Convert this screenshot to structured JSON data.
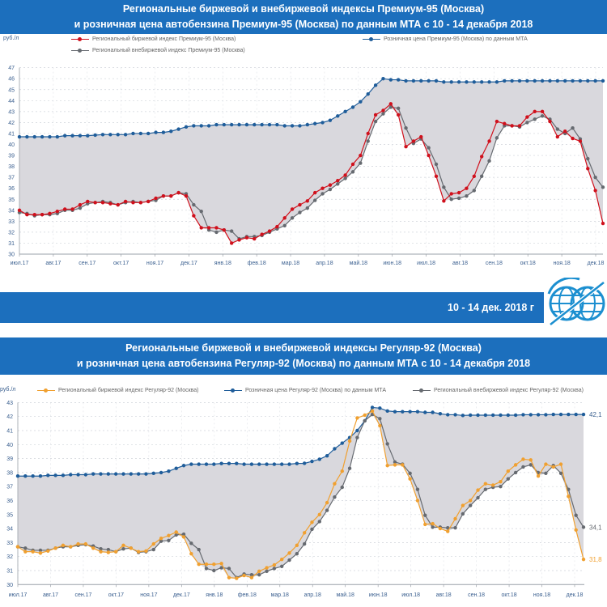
{
  "header1": {
    "line1": "Региональные биржевой и внебиржевой индексы Премиум-95 (Москва)",
    "line2": "и розничная цена автобензина Премиум-95 (Москва) по данным МТА с 10 - 14 декабря 2018"
  },
  "date_banner": "10 - 14 дек. 2018 г",
  "header2": {
    "line1": "Региональные биржевой и внебиржевой индексы Регуляр-92 (Москва)",
    "line2": "и розничная цена автобензина Регуляр-92 (Москва) по данным МТА с 10 - 14 декабря 2018"
  },
  "colors": {
    "banner": "#1c6fbd",
    "retail": "#1f5d9a",
    "exchange95": "#d0101c",
    "offexchange": "#666a70",
    "exchange92": "#f0a030",
    "gap_fill": "#d9d8dd"
  },
  "chart_data": [
    {
      "type": "line",
      "ylabel": "руб./л",
      "ylim": [
        30,
        47
      ],
      "yticks": [
        "30",
        "31",
        "32",
        "33",
        "34",
        "35",
        "36",
        "37",
        "38",
        "39",
        "40",
        "41",
        "42",
        "43",
        "44",
        "45",
        "46",
        "47"
      ],
      "xticks": [
        "июл.17",
        "авг.17",
        "сен.17",
        "окт.17",
        "ноя.17",
        "дек.17",
        "янв.18",
        "фев.18",
        "мар.18",
        "апр.18",
        "май.18",
        "июн.18",
        "июл.18",
        "авг.18",
        "сен.18",
        "окт.18",
        "ноя.18",
        "дек.18"
      ],
      "grid": true,
      "legend": "top",
      "series": [
        {
          "name": "Региональный биржевой индекс Премиум-95 (Москва)",
          "color": "#d0101c",
          "values": [
            34.0,
            33.6,
            33.6,
            33.6,
            33.7,
            33.9,
            34.1,
            34.1,
            34.5,
            34.8,
            34.7,
            34.7,
            34.6,
            34.5,
            34.8,
            34.7,
            34.7,
            34.8,
            35.1,
            35.3,
            35.3,
            35.6,
            35.3,
            33.5,
            32.4,
            32.4,
            32.4,
            32.2,
            31.0,
            31.3,
            31.5,
            31.4,
            31.8,
            32.1,
            32.5,
            33.3,
            34.1,
            34.5,
            34.85,
            35.6,
            36.0,
            36.3,
            36.7,
            37.2,
            38.2,
            39.0,
            41.0,
            42.7,
            43.1,
            43.7,
            42.7,
            39.8,
            40.3,
            40.7,
            39.0,
            37.1,
            34.85,
            35.5,
            35.6,
            36.0,
            37.1,
            38.9,
            40.3,
            42.1,
            41.9,
            41.7,
            41.7,
            42.5,
            43.0,
            43.0,
            42.1,
            40.7,
            41.2,
            40.55,
            40.3,
            37.8,
            35.8,
            32.8
          ]
        },
        {
          "name": "Региональный внебиржевой индекс Премиум-95 (Москва)",
          "color": "#666a70",
          "values": [
            33.8,
            33.7,
            33.5,
            33.6,
            33.6,
            33.7,
            34.0,
            34.0,
            34.2,
            34.6,
            34.7,
            34.8,
            34.7,
            34.5,
            34.7,
            34.8,
            34.7,
            34.8,
            34.9,
            35.3,
            35.3,
            35.6,
            35.5,
            34.5,
            33.9,
            32.2,
            32.0,
            32.2,
            32.1,
            31.4,
            31.6,
            31.6,
            31.7,
            32.0,
            32.3,
            32.6,
            33.3,
            33.8,
            34.2,
            34.9,
            35.5,
            35.9,
            36.4,
            36.9,
            37.5,
            38.3,
            40.3,
            42.1,
            42.8,
            43.4,
            43.3,
            41.5,
            40.1,
            40.5,
            39.7,
            38.2,
            36.1,
            35.0,
            35.1,
            35.3,
            35.8,
            37.1,
            38.5,
            40.6,
            41.7,
            41.7,
            41.6,
            42.0,
            42.3,
            42.6,
            42.3,
            41.4,
            41.0,
            41.5,
            40.5,
            38.7,
            37.0,
            36.1
          ]
        },
        {
          "name": "Розничная цена Премиум-95 (Москва) по данным МТА",
          "color": "#1f5d9a",
          "values": [
            40.7,
            40.7,
            40.7,
            40.7,
            40.7,
            40.7,
            40.8,
            40.8,
            40.8,
            40.8,
            40.85,
            40.9,
            40.9,
            40.9,
            40.9,
            41.0,
            41.0,
            41.0,
            41.1,
            41.1,
            41.2,
            41.4,
            41.6,
            41.7,
            41.7,
            41.7,
            41.8,
            41.8,
            41.8,
            41.8,
            41.8,
            41.8,
            41.8,
            41.8,
            41.8,
            41.7,
            41.7,
            41.7,
            41.8,
            41.9,
            42.0,
            42.2,
            42.6,
            43.0,
            43.4,
            43.9,
            44.6,
            45.4,
            46.0,
            45.9,
            45.9,
            45.8,
            45.8,
            45.8,
            45.8,
            45.8,
            45.7,
            45.7,
            45.7,
            45.7,
            45.7,
            45.7,
            45.7,
            45.7,
            45.8,
            45.8,
            45.8,
            45.8,
            45.8,
            45.8,
            45.8,
            45.8,
            45.8,
            45.8,
            45.8,
            45.8,
            45.8,
            45.8
          ]
        }
      ]
    },
    {
      "type": "line",
      "ylabel": "руб./л",
      "ylim": [
        30,
        43
      ],
      "yticks": [
        "30",
        "31",
        "32",
        "33",
        "34",
        "35",
        "36",
        "37",
        "38",
        "39",
        "40",
        "41",
        "42",
        "43"
      ],
      "xticks": [
        "июл.17",
        "авг.17",
        "сен.17",
        "окт.17",
        "ноя.17",
        "дек.17",
        "янв.18",
        "фев.18",
        "мар.18",
        "апр.18",
        "май.18",
        "июн.18",
        "июл.18",
        "авг.18",
        "сен.18",
        "окт.18",
        "ноя.18",
        "дек.18"
      ],
      "grid": true,
      "legend": "top",
      "end_labels": [
        "42,1",
        "34,1",
        "31,8"
      ],
      "series": [
        {
          "name": "Региональный биржевой индекс Регуляр-92 (Москва)",
          "color": "#f0a030",
          "values": [
            32.7,
            32.35,
            32.35,
            32.25,
            32.4,
            32.6,
            32.8,
            32.7,
            32.9,
            32.9,
            32.6,
            32.35,
            32.3,
            32.35,
            32.8,
            32.6,
            32.35,
            32.4,
            32.9,
            33.3,
            33.5,
            33.75,
            33.4,
            32.2,
            31.45,
            31.45,
            31.45,
            31.5,
            30.5,
            30.45,
            30.65,
            30.5,
            30.95,
            31.2,
            31.4,
            31.8,
            32.25,
            32.8,
            33.7,
            34.45,
            35.0,
            35.85,
            37.2,
            38.1,
            40.25,
            41.9,
            42.1,
            42.4,
            41.35,
            38.5,
            38.55,
            38.55,
            37.55,
            36.0,
            34.3,
            34.35,
            34.0,
            33.8,
            34.7,
            35.65,
            36.0,
            36.75,
            37.2,
            37.1,
            37.35,
            38.1,
            38.55,
            38.95,
            38.9,
            37.75,
            38.6,
            38.4,
            38.6,
            36.3,
            33.9,
            31.8
          ]
        },
        {
          "name": "Розничная цена Регуляр-92 (Москва) по данным МТА",
          "color": "#1f5d9a",
          "values": [
            37.75,
            37.75,
            37.75,
            37.75,
            37.8,
            37.8,
            37.8,
            37.85,
            37.85,
            37.85,
            37.9,
            37.9,
            37.9,
            37.9,
            37.9,
            37.9,
            37.9,
            37.9,
            37.95,
            38.0,
            38.1,
            38.3,
            38.5,
            38.6,
            38.6,
            38.6,
            38.6,
            38.65,
            38.65,
            38.65,
            38.6,
            38.6,
            38.6,
            38.6,
            38.6,
            38.6,
            38.6,
            38.65,
            38.66,
            38.8,
            38.95,
            39.2,
            39.7,
            40.1,
            40.5,
            41.0,
            41.7,
            42.65,
            42.6,
            42.4,
            42.35,
            42.35,
            42.35,
            42.35,
            42.3,
            42.3,
            42.2,
            42.13,
            42.13,
            42.08,
            42.1,
            42.1,
            42.1,
            42.1,
            42.1,
            42.1,
            42.1,
            42.13,
            42.13,
            42.13,
            42.13,
            42.15,
            42.15,
            42.15,
            42.15,
            42.15
          ]
        },
        {
          "name": "Региональный внебиржевой индекс Регуляр-92 (Москва)",
          "color": "#666a70",
          "values": [
            32.7,
            32.6,
            32.45,
            32.45,
            32.45,
            32.6,
            32.7,
            32.7,
            32.8,
            32.85,
            32.75,
            32.55,
            32.5,
            32.35,
            32.55,
            32.6,
            32.3,
            32.35,
            32.5,
            33.1,
            33.15,
            33.55,
            33.6,
            32.95,
            32.5,
            31.15,
            31.0,
            31.2,
            31.15,
            30.5,
            30.75,
            30.7,
            30.7,
            30.95,
            31.15,
            31.3,
            31.75,
            32.2,
            32.9,
            33.95,
            34.5,
            35.3,
            36.25,
            36.95,
            38.3,
            40.5,
            41.7,
            42.15,
            41.85,
            40.05,
            38.75,
            38.6,
            37.95,
            36.8,
            34.95,
            34.1,
            34.1,
            34.05,
            34.05,
            35.05,
            35.65,
            36.2,
            36.8,
            36.95,
            37.0,
            37.55,
            38.0,
            38.4,
            38.55,
            38.0,
            37.95,
            38.5,
            37.95,
            36.8,
            34.95,
            34.1
          ]
        }
      ]
    }
  ]
}
